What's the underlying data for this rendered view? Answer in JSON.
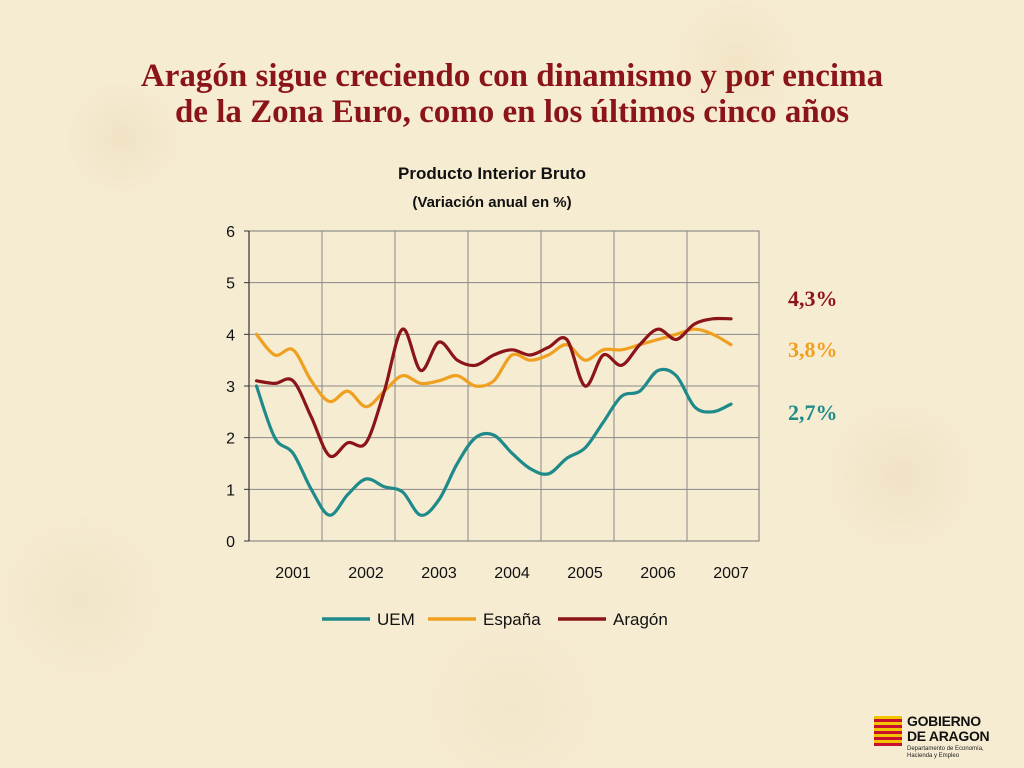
{
  "slide": {
    "title_line1": "Aragón sigue creciendo con dinamismo y por encima",
    "title_line2": "de la Zona Euro, como en los últimos cinco años"
  },
  "annotations": [
    {
      "text": "4,3%",
      "color": "#8b1418"
    },
    {
      "text": "3,8%",
      "color": "#f0a020"
    },
    {
      "text": "2,7%",
      "color": "#1f8a8a"
    }
  ],
  "logo": {
    "line1": "GOBIERNO",
    "line2": "DE ARAGON",
    "sub1": "Departamento de Economía,",
    "sub2": "Hacienda y Empleo"
  },
  "chart_data": {
    "type": "line",
    "title": "Producto Interior Bruto",
    "subtitle": "(Variación anual en %)",
    "x_ticks": [
      "2001",
      "2002",
      "2003",
      "2004",
      "2005",
      "2006",
      "2007"
    ],
    "ylim": [
      0,
      6
    ],
    "y_ticks": [
      "0",
      "1",
      "2",
      "3",
      "4",
      "5",
      "6"
    ],
    "grid": true,
    "legend_position": "bottom",
    "x": [
      2000.5,
      2000.75,
      2001.0,
      2001.25,
      2001.5,
      2001.75,
      2002.0,
      2002.25,
      2002.5,
      2002.75,
      2003.0,
      2003.25,
      2003.5,
      2003.75,
      2004.0,
      2004.25,
      2004.5,
      2004.75,
      2005.0,
      2005.25,
      2005.5,
      2005.75,
      2006.0,
      2006.25,
      2006.5,
      2006.75,
      2007.0
    ],
    "series": [
      {
        "name": "UEM",
        "color": "#1f8a8a",
        "values": [
          3.0,
          2.0,
          1.7,
          1.0,
          0.5,
          0.9,
          1.2,
          1.05,
          0.95,
          0.5,
          0.8,
          1.5,
          2.0,
          2.05,
          1.7,
          1.4,
          1.3,
          1.6,
          1.8,
          2.3,
          2.8,
          2.9,
          3.3,
          3.2,
          2.6,
          2.5,
          2.65
        ]
      },
      {
        "name": "España",
        "color": "#f0a020",
        "values": [
          4.0,
          3.6,
          3.7,
          3.1,
          2.7,
          2.9,
          2.6,
          2.9,
          3.2,
          3.05,
          3.1,
          3.2,
          3.0,
          3.1,
          3.6,
          3.5,
          3.6,
          3.8,
          3.5,
          3.7,
          3.7,
          3.8,
          3.9,
          4.0,
          4.1,
          4.0,
          3.8
        ]
      },
      {
        "name": "Aragón",
        "color": "#8b1418",
        "values": [
          3.1,
          3.05,
          3.1,
          2.4,
          1.65,
          1.9,
          1.9,
          2.9,
          4.1,
          3.3,
          3.85,
          3.5,
          3.4,
          3.6,
          3.7,
          3.6,
          3.75,
          3.9,
          3.0,
          3.6,
          3.4,
          3.8,
          4.1,
          3.9,
          4.2,
          4.3,
          4.3
        ]
      }
    ]
  }
}
